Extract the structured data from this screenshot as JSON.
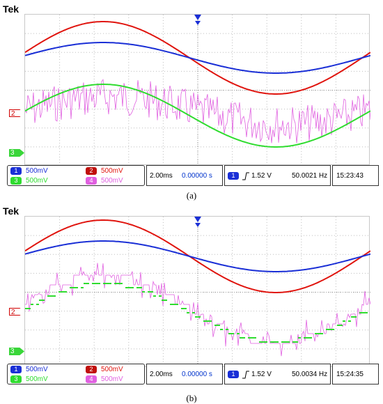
{
  "colors": {
    "ch1": "#1a2fd6",
    "ch2": "#e0140e",
    "ch3": "#2fdc2f",
    "ch4": "#e060e0",
    "selected_ch": "#1a2fd6",
    "value_text": "#0033cc"
  },
  "panels": [
    {
      "brand": "Tek",
      "markers": {
        "ch2": "2",
        "ch3": "3"
      },
      "channels": [
        {
          "num": "1",
          "scale": "500mV"
        },
        {
          "num": "2",
          "scale": "500mV"
        },
        {
          "num": "3",
          "scale": "500mV"
        },
        {
          "num": "4",
          "scale": "500mV"
        }
      ],
      "timebase": "2.00ms",
      "position": "0.00000 s",
      "trigger": {
        "source": "1",
        "slope_icon": "rising-edge-icon",
        "level": "1.52 V",
        "frequency": "50.0021 Hz"
      },
      "clock": "15:23:43",
      "caption": "(a)"
    },
    {
      "brand": "Tek",
      "markers": {
        "ch2": "2",
        "ch3": "3"
      },
      "channels": [
        {
          "num": "1",
          "scale": "500mV"
        },
        {
          "num": "2",
          "scale": "500mV"
        },
        {
          "num": "3",
          "scale": "500mV"
        },
        {
          "num": "4",
          "scale": "500mV"
        }
      ],
      "timebase": "2.00ms",
      "position": "0.00000 s",
      "trigger": {
        "source": "1",
        "slope_icon": "rising-edge-icon",
        "level": "1.52 V",
        "frequency": "50.0034 Hz"
      },
      "clock": "15:24:35",
      "caption": "(b)"
    }
  ]
}
